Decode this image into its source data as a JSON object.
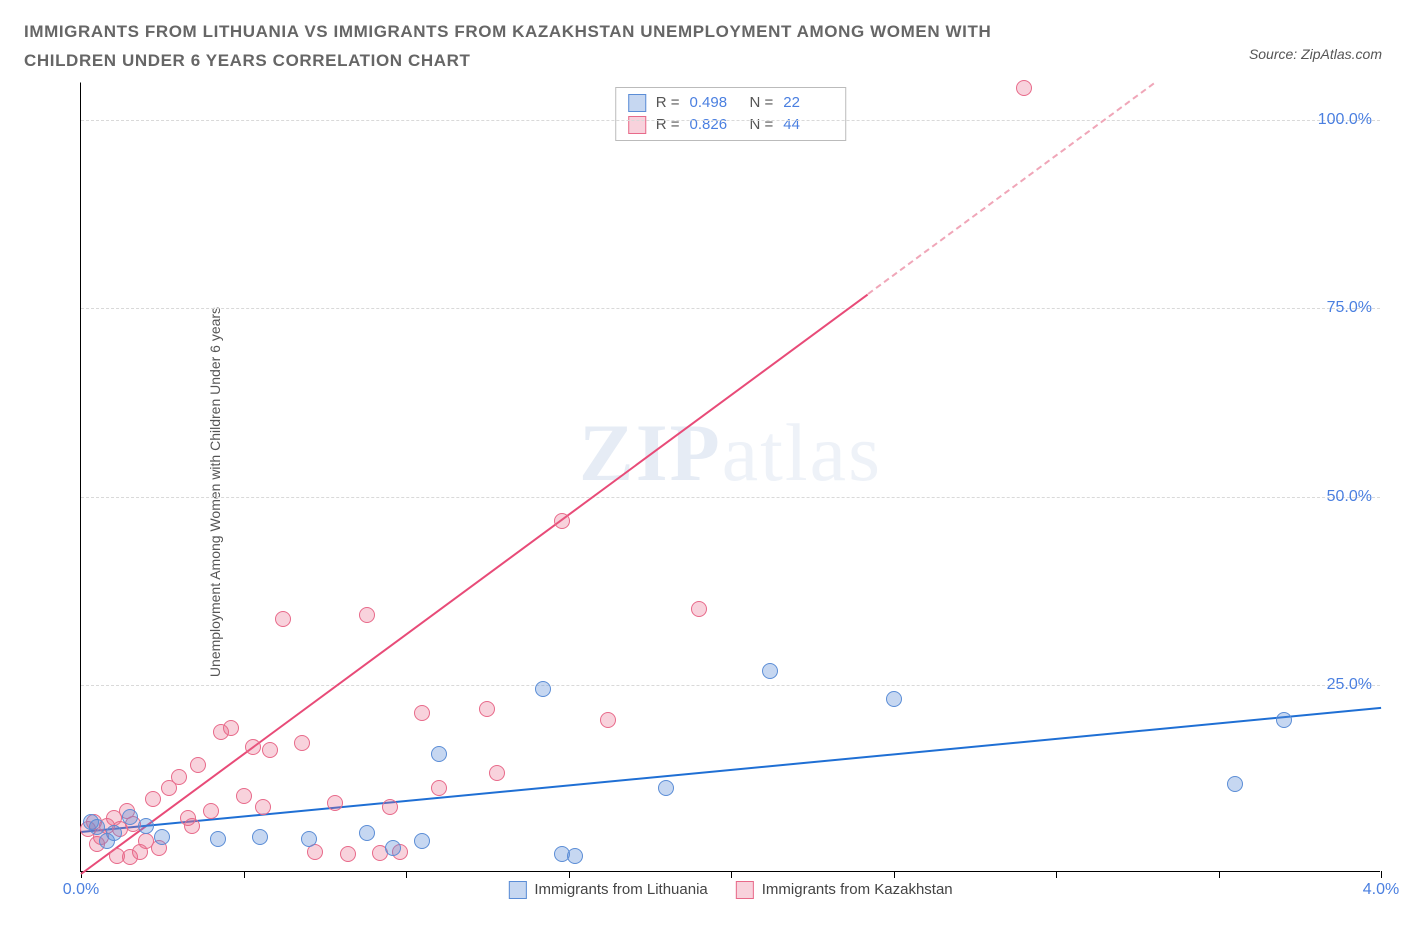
{
  "header": {
    "title": "IMMIGRANTS FROM LITHUANIA VS IMMIGRANTS FROM KAZAKHSTAN UNEMPLOYMENT AMONG WOMEN WITH CHILDREN UNDER 6 YEARS CORRELATION CHART",
    "source_label": "Source: ZipAtlas.com"
  },
  "chart": {
    "type": "scatter",
    "ylabel": "Unemployment Among Women with Children Under 6 years",
    "watermark": "ZIPatlas",
    "xlim": [
      0,
      4.0
    ],
    "ylim": [
      0,
      105
    ],
    "xtick_labels": {
      "0": "0.0%",
      "4": "4.0%"
    },
    "xtick_positions": [
      0,
      0.5,
      1.0,
      1.5,
      2.0,
      2.5,
      3.0,
      3.5,
      4.0
    ],
    "ytick_labels": {
      "25": "25.0%",
      "50": "50.0%",
      "75": "75.0%",
      "100": "100.0%"
    },
    "ytick_positions": [
      25,
      50,
      75,
      100
    ],
    "grid_color": "#d9d9d9",
    "background_color": "#ffffff",
    "axis_label_color": "#4a7fe0",
    "marker_radius": 8,
    "marker_fill_opacity": 0.35,
    "series": {
      "lithuania": {
        "label": "Immigrants from Lithuania",
        "color": "#5b8dd6",
        "fill": "rgba(91,141,214,0.35)",
        "stroke": "#5b8dd6",
        "R": "0.498",
        "N": "22",
        "trend": {
          "x1": 0.0,
          "y1": 5.5,
          "x2": 4.0,
          "y2": 22.0,
          "color": "#1f6fd4"
        },
        "points": [
          {
            "x": 0.03,
            "y": 6.5
          },
          {
            "x": 0.05,
            "y": 5.8
          },
          {
            "x": 0.08,
            "y": 4.0
          },
          {
            "x": 0.1,
            "y": 5.0
          },
          {
            "x": 0.15,
            "y": 7.2
          },
          {
            "x": 0.25,
            "y": 4.5
          },
          {
            "x": 0.42,
            "y": 4.2
          },
          {
            "x": 0.55,
            "y": 4.5
          },
          {
            "x": 0.7,
            "y": 4.2
          },
          {
            "x": 0.88,
            "y": 5.0
          },
          {
            "x": 0.96,
            "y": 3.0
          },
          {
            "x": 1.05,
            "y": 4.0
          },
          {
            "x": 1.1,
            "y": 15.5
          },
          {
            "x": 1.42,
            "y": 24.2
          },
          {
            "x": 1.48,
            "y": 2.2
          },
          {
            "x": 1.52,
            "y": 2.0
          },
          {
            "x": 1.8,
            "y": 11.0
          },
          {
            "x": 2.12,
            "y": 26.5
          },
          {
            "x": 2.5,
            "y": 22.8
          },
          {
            "x": 3.55,
            "y": 11.5
          },
          {
            "x": 3.7,
            "y": 20.0
          },
          {
            "x": 0.2,
            "y": 6.0
          }
        ]
      },
      "kazakhstan": {
        "label": "Immigrants from Kazakhstan",
        "color": "#e86a8a",
        "fill": "rgba(232,106,138,0.30)",
        "stroke": "#e86a8a",
        "R": "0.826",
        "N": "44",
        "trend_solid": {
          "x1": 0.0,
          "y1": 0.0,
          "x2": 2.42,
          "y2": 77.0,
          "color": "#e84b78"
        },
        "trend_dash": {
          "x1": 2.42,
          "y1": 77.0,
          "x2": 3.3,
          "y2": 105.0,
          "color": "#f0a6b8"
        },
        "points": [
          {
            "x": 0.02,
            "y": 5.5
          },
          {
            "x": 0.04,
            "y": 6.5
          },
          {
            "x": 0.06,
            "y": 4.5
          },
          {
            "x": 0.08,
            "y": 6.0
          },
          {
            "x": 0.1,
            "y": 7.0
          },
          {
            "x": 0.12,
            "y": 5.5
          },
          {
            "x": 0.14,
            "y": 8.0
          },
          {
            "x": 0.16,
            "y": 6.2
          },
          {
            "x": 0.18,
            "y": 2.5
          },
          {
            "x": 0.2,
            "y": 4.0
          },
          {
            "x": 0.22,
            "y": 9.5
          },
          {
            "x": 0.24,
            "y": 3.0
          },
          {
            "x": 0.27,
            "y": 11.0
          },
          {
            "x": 0.3,
            "y": 12.5
          },
          {
            "x": 0.33,
            "y": 7.0
          },
          {
            "x": 0.36,
            "y": 14.0
          },
          {
            "x": 0.4,
            "y": 8.0
          },
          {
            "x": 0.43,
            "y": 18.5
          },
          {
            "x": 0.46,
            "y": 19.0
          },
          {
            "x": 0.5,
            "y": 10.0
          },
          {
            "x": 0.53,
            "y": 16.5
          },
          {
            "x": 0.58,
            "y": 16.0
          },
          {
            "x": 0.62,
            "y": 33.5
          },
          {
            "x": 0.68,
            "y": 17.0
          },
          {
            "x": 0.72,
            "y": 2.5
          },
          {
            "x": 0.78,
            "y": 9.0
          },
          {
            "x": 0.82,
            "y": 2.2
          },
          {
            "x": 0.88,
            "y": 34.0
          },
          {
            "x": 0.92,
            "y": 2.3
          },
          {
            "x": 0.95,
            "y": 8.5
          },
          {
            "x": 0.98,
            "y": 2.5
          },
          {
            "x": 1.05,
            "y": 21.0
          },
          {
            "x": 1.1,
            "y": 11.0
          },
          {
            "x": 1.25,
            "y": 21.5
          },
          {
            "x": 1.28,
            "y": 13.0
          },
          {
            "x": 1.48,
            "y": 46.5
          },
          {
            "x": 1.62,
            "y": 20.0
          },
          {
            "x": 1.9,
            "y": 34.8
          },
          {
            "x": 2.9,
            "y": 104.0
          },
          {
            "x": 0.05,
            "y": 3.5
          },
          {
            "x": 0.11,
            "y": 2.0
          },
          {
            "x": 0.15,
            "y": 1.8
          },
          {
            "x": 0.34,
            "y": 6.0
          },
          {
            "x": 0.56,
            "y": 8.5
          }
        ]
      }
    },
    "legend_top": {
      "r_label": "R =",
      "n_label": "N ="
    }
  }
}
